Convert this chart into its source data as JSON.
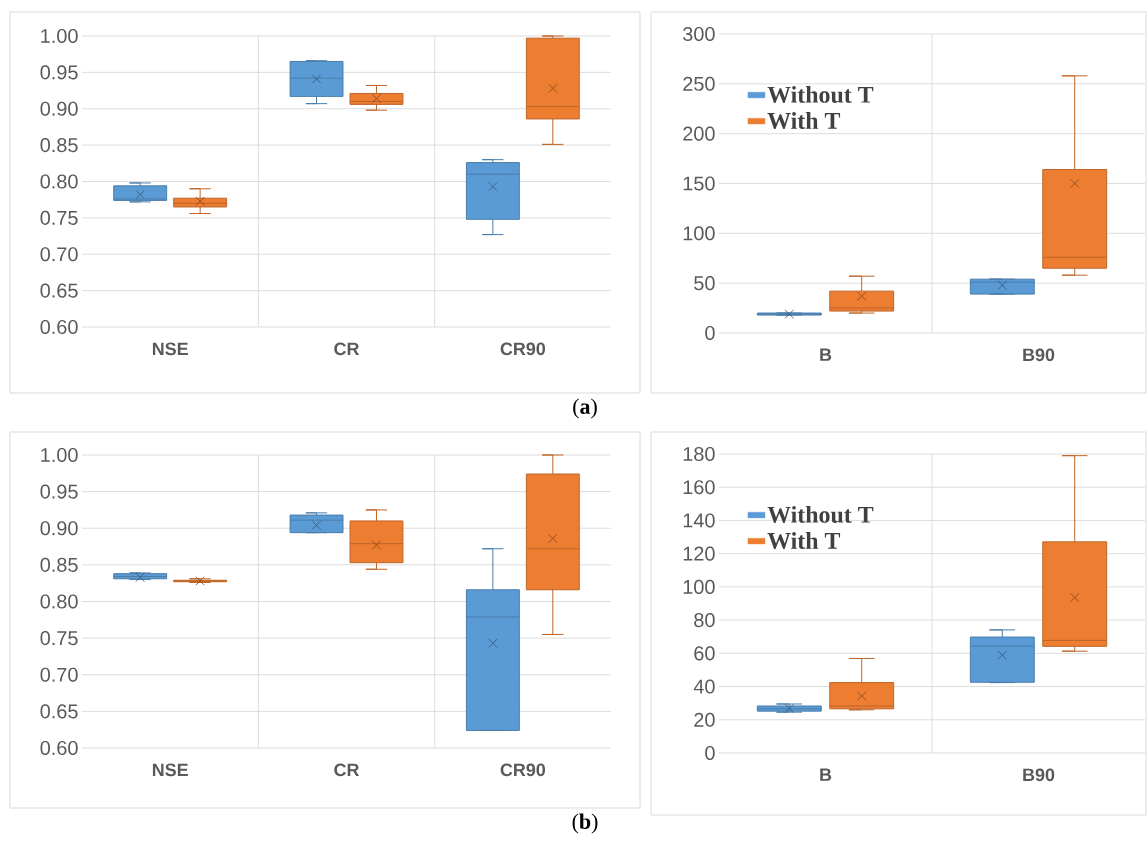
{
  "chart_data": [
    {
      "type": "box",
      "categories": [
        "NSE",
        "CR",
        "CR90"
      ],
      "ylim": [
        0.6,
        1.0
      ],
      "yticks": [
        {
          "value": 0.6,
          "label": "0.60"
        },
        {
          "value": 0.65,
          "label": "0.65"
        },
        {
          "value": 0.7,
          "label": "0.70"
        },
        {
          "value": 0.75,
          "label": "0.75"
        },
        {
          "value": 0.8,
          "label": "0.80"
        },
        {
          "value": 0.85,
          "label": "0.85"
        },
        {
          "value": 0.9,
          "label": "0.90"
        },
        {
          "value": 0.95,
          "label": "0.95"
        },
        {
          "value": 1.0,
          "label": "1.00"
        }
      ],
      "grid": true,
      "annotations": [
        "(**a**)"
      ],
      "series": [
        {
          "color": "#5b9bd5",
          "boxes": [
            {
              "low": 0.772,
              "q1": 0.774,
              "median": 0.776,
              "q3": 0.794,
              "high": 0.798,
              "mean": 0.782
            },
            {
              "low": 0.907,
              "q1": 0.917,
              "median": 0.942,
              "q3": 0.965,
              "high": 0.966,
              "mean": 0.941
            },
            {
              "low": 0.727,
              "q1": 0.748,
              "median": 0.81,
              "q3": 0.826,
              "high": 0.83,
              "mean": 0.793
            }
          ]
        },
        {
          "color": "#ed7d31",
          "boxes": [
            {
              "low": 0.756,
              "q1": 0.765,
              "median": 0.77,
              "q3": 0.777,
              "high": 0.79,
              "mean": 0.773
            },
            {
              "low": 0.898,
              "q1": 0.906,
              "median": 0.91,
              "q3": 0.921,
              "high": 0.932,
              "mean": 0.914
            },
            {
              "low": 0.851,
              "q1": 0.886,
              "median": 0.903,
              "q3": 0.997,
              "high": 1.0,
              "mean": 0.928
            }
          ]
        }
      ]
    },
    {
      "type": "box",
      "categories": [
        "B",
        "B90"
      ],
      "ylim": [
        0,
        300
      ],
      "yticks": [
        0,
        50,
        100,
        150,
        200,
        250,
        300
      ],
      "grid": true,
      "legend": "top left",
      "series": [
        {
          "name": "Without T",
          "color": "#5b9bd5",
          "boxes": [
            {
              "low": 18,
              "q1": 18,
              "median": 19,
              "q3": 20,
              "high": 20,
              "mean": 19
            },
            {
              "low": 39,
              "q1": 39,
              "median": 51,
              "q3": 54,
              "high": 54,
              "mean": 48
            }
          ]
        },
        {
          "name": "With T",
          "color": "#ed7d31",
          "boxes": [
            {
              "low": 20,
              "q1": 22,
              "median": 25,
              "q3": 42,
              "high": 57,
              "mean": 37
            },
            {
              "low": 58,
              "q1": 65,
              "median": 76,
              "q3": 164,
              "high": 258,
              "mean": 150
            }
          ]
        }
      ]
    },
    {
      "type": "box",
      "categories": [
        "NSE",
        "CR",
        "CR90"
      ],
      "ylim": [
        0.6,
        1.0
      ],
      "yticks": [
        {
          "value": 0.6,
          "label": "0.60"
        },
        {
          "value": 0.65,
          "label": "0.65"
        },
        {
          "value": 0.7,
          "label": "0.70"
        },
        {
          "value": 0.75,
          "label": "0.75"
        },
        {
          "value": 0.8,
          "label": "0.80"
        },
        {
          "value": 0.85,
          "label": "0.85"
        },
        {
          "value": 0.9,
          "label": "0.90"
        },
        {
          "value": 0.95,
          "label": "0.95"
        },
        {
          "value": 1.0,
          "label": "1.00"
        }
      ],
      "grid": true,
      "annotations": [
        "(**b**)"
      ],
      "series": [
        {
          "color": "#5b9bd5",
          "boxes": [
            {
              "low": 0.83,
              "q1": 0.831,
              "median": 0.834,
              "q3": 0.838,
              "high": 0.839,
              "mean": 0.833
            },
            {
              "low": 0.894,
              "q1": 0.894,
              "median": 0.911,
              "q3": 0.918,
              "high": 0.921,
              "mean": 0.904
            },
            {
              "low": 0.624,
              "q1": 0.624,
              "median": 0.779,
              "q3": 0.816,
              "high": 0.872,
              "mean": 0.743
            }
          ]
        },
        {
          "color": "#ed7d31",
          "boxes": [
            {
              "low": 0.826,
              "q1": 0.827,
              "median": 0.828,
              "q3": 0.829,
              "high": 0.831,
              "mean": 0.828
            },
            {
              "low": 0.844,
              "q1": 0.853,
              "median": 0.879,
              "q3": 0.91,
              "high": 0.925,
              "mean": 0.877
            },
            {
              "low": 0.755,
              "q1": 0.816,
              "median": 0.872,
              "q3": 0.974,
              "high": 1.0,
              "mean": 0.886
            }
          ]
        }
      ]
    },
    {
      "type": "box",
      "categories": [
        "B",
        "B90"
      ],
      "ylim": [
        0,
        180
      ],
      "yticks": [
        0,
        20,
        40,
        60,
        80,
        100,
        120,
        140,
        160,
        180
      ],
      "grid": true,
      "legend": "top left",
      "series": [
        {
          "name": "Without T",
          "color": "#5b9bd5",
          "boxes": [
            {
              "low": 24.6,
              "q1": 25.2,
              "median": 26.6,
              "q3": 28.3,
              "high": 29.5,
              "mean": 26.8
            },
            {
              "low": 42.4,
              "q1": 42.6,
              "median": 64.4,
              "q3": 69.8,
              "high": 74.1,
              "mean": 58.9
            }
          ]
        },
        {
          "name": "With T",
          "color": "#ed7d31",
          "boxes": [
            {
              "low": 26,
              "q1": 26.6,
              "median": 28.3,
              "q3": 42.4,
              "high": 56.9,
              "mean": 34.3
            },
            {
              "low": 61.3,
              "q1": 64.2,
              "median": 67.8,
              "q3": 127.1,
              "high": 179,
              "mean": 93.6
            }
          ]
        }
      ]
    }
  ]
}
